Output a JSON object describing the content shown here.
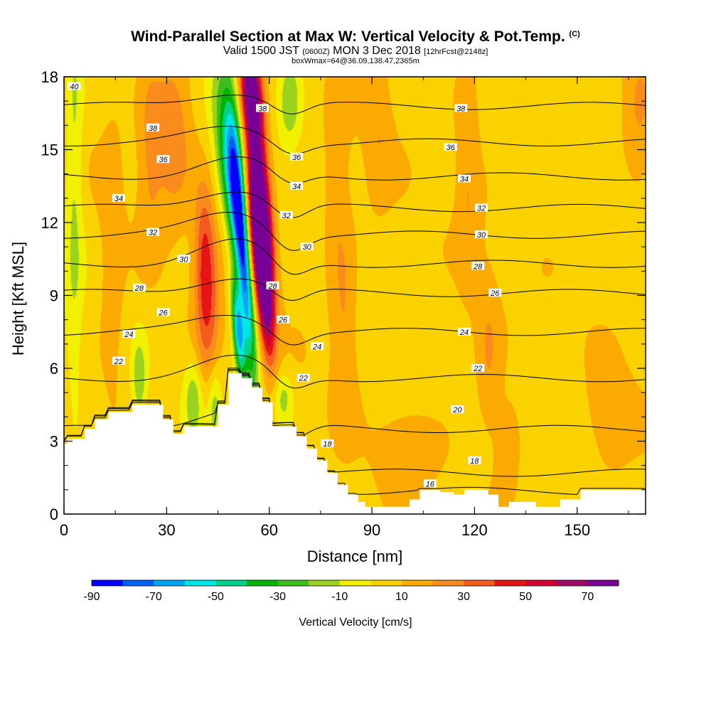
{
  "title": {
    "main": "Wind-Parallel Section at Max W: Vertical Velocity & Pot.Temp.",
    "copyright": "(C)",
    "valid_prefix": "Valid 1500 JST",
    "valid_utc": "(0600Z)",
    "valid_date": "MON 3 Dec 2018",
    "forecast": "[12hrFcst@2148z]",
    "box_info": "boxWmax=64@36.09,138.47,2365m"
  },
  "chart_data": {
    "type": "heatmap",
    "xlabel": "Distance [nm]",
    "ylabel": "Height [Kft MSL]",
    "xlim": [
      0,
      170
    ],
    "ylim": [
      0,
      18
    ],
    "x_ticks": [
      0,
      30,
      60,
      90,
      120,
      150
    ],
    "y_ticks": [
      0,
      3,
      6,
      9,
      12,
      15,
      18
    ],
    "colorbar": {
      "title": "Vertical Velocity [cm/s]",
      "levels": [
        -90,
        -80,
        -70,
        -60,
        -50,
        -40,
        -30,
        -20,
        -10,
        0,
        10,
        20,
        30,
        40,
        50,
        60,
        70,
        80
      ],
      "tick_labels": [
        -90,
        -70,
        -50,
        -30,
        -10,
        10,
        30,
        50,
        70
      ],
      "colors": [
        "#0000ff",
        "#005ff5",
        "#00a5f5",
        "#00e6e6",
        "#00d28c",
        "#00b400",
        "#3cbe1e",
        "#9ad21e",
        "#f0f000",
        "#fad200",
        "#faaa00",
        "#fa8c1e",
        "#f55a1e",
        "#e61414",
        "#d20032",
        "#a00a64",
        "#780096"
      ]
    },
    "terrain_profile": [
      [
        0,
        2.9
      ],
      [
        1,
        2.9
      ],
      [
        1,
        3.1
      ],
      [
        6,
        3.1
      ],
      [
        6,
        3.5
      ],
      [
        9,
        3.5
      ],
      [
        9,
        3.9
      ],
      [
        13,
        3.9
      ],
      [
        13,
        4.2
      ],
      [
        20,
        4.2
      ],
      [
        20,
        4.5
      ],
      [
        29,
        4.5
      ],
      [
        29,
        3.9
      ],
      [
        32,
        3.9
      ],
      [
        32,
        3.3
      ],
      [
        35,
        3.3
      ],
      [
        35,
        3.6
      ],
      [
        45,
        3.6
      ],
      [
        45,
        4.5
      ],
      [
        48,
        4.5
      ],
      [
        48,
        5.8
      ],
      [
        52,
        5.8
      ],
      [
        52,
        5.6
      ],
      [
        55,
        5.6
      ],
      [
        55,
        5.2
      ],
      [
        58,
        5.2
      ],
      [
        58,
        4.6
      ],
      [
        61,
        4.6
      ],
      [
        61,
        3.6
      ],
      [
        68,
        3.6
      ],
      [
        68,
        3.2
      ],
      [
        71,
        3.2
      ],
      [
        71,
        2.7
      ],
      [
        74,
        2.7
      ],
      [
        74,
        2.2
      ],
      [
        77,
        2.2
      ],
      [
        77,
        1.7
      ],
      [
        80,
        1.7
      ],
      [
        80,
        1.2
      ],
      [
        83,
        1.2
      ],
      [
        83,
        0.8
      ],
      [
        86,
        0.8
      ],
      [
        86,
        0.5
      ],
      [
        88,
        0.5
      ],
      [
        88,
        0.3
      ],
      [
        101,
        0.3
      ],
      [
        101,
        0.6
      ],
      [
        104,
        0.6
      ],
      [
        104,
        1.0
      ],
      [
        110,
        1.0
      ],
      [
        110,
        0.9
      ],
      [
        114,
        0.9
      ],
      [
        114,
        0.8
      ],
      [
        117,
        0.8
      ],
      [
        117,
        1.0
      ],
      [
        124,
        1.0
      ],
      [
        124,
        0.8
      ],
      [
        127,
        0.8
      ],
      [
        127,
        0.3
      ],
      [
        130,
        0.3
      ],
      [
        130,
        0.5
      ],
      [
        138,
        0.5
      ],
      [
        138,
        0.3
      ],
      [
        145,
        0.3
      ],
      [
        145,
        0.6
      ],
      [
        151,
        0.6
      ],
      [
        151,
        1.0
      ],
      [
        170,
        1.0
      ]
    ],
    "velocity_features": [
      {
        "x": 57.5,
        "y": 11.5,
        "w": 88,
        "sx": 2.2,
        "sy": 2.2
      },
      {
        "x": 56,
        "y": 15,
        "w": 55,
        "sx": 2.2,
        "sy": 3.0
      },
      {
        "x": 55,
        "y": 17.3,
        "w": 50,
        "sx": 2.0,
        "sy": 1.2
      },
      {
        "x": 59,
        "y": 8.5,
        "w": 45,
        "sx": 1.6,
        "sy": 1.8
      },
      {
        "x": 52.5,
        "y": 10.5,
        "w": -80,
        "sx": 1.5,
        "sy": 3.5
      },
      {
        "x": 51,
        "y": 7.5,
        "w": -65,
        "sx": 1.2,
        "sy": 1.5
      },
      {
        "x": 48,
        "y": 15.5,
        "w": -38,
        "sx": 3.0,
        "sy": 2.5
      },
      {
        "x": 49.5,
        "y": 13.0,
        "w": -35,
        "sx": 1.8,
        "sy": 2.0
      },
      {
        "x": 66,
        "y": 17.0,
        "w": -22,
        "sx": 2.5,
        "sy": 1.5
      },
      {
        "x": 42,
        "y": 8.5,
        "w": 28,
        "sx": 2.5,
        "sy": 2.5
      },
      {
        "x": 41,
        "y": 11.0,
        "w": 22,
        "sx": 2.0,
        "sy": 2.0
      },
      {
        "x": 38,
        "y": 4.8,
        "w": -22,
        "sx": 2.0,
        "sy": 1.2
      },
      {
        "x": 44,
        "y": 4.5,
        "w": -22,
        "sx": 1.5,
        "sy": 1.2
      },
      {
        "x": 22,
        "y": 5.5,
        "w": -22,
        "sx": 1.5,
        "sy": 1.2
      },
      {
        "x": 3,
        "y": 14.0,
        "w": -18,
        "sx": 1.8,
        "sy": 7.0
      },
      {
        "x": 32,
        "y": 16.0,
        "w": 22,
        "sx": 4.0,
        "sy": 2.5
      },
      {
        "x": 25,
        "y": 15.0,
        "w": 14,
        "sx": 2.5,
        "sy": 3.0
      },
      {
        "x": 14,
        "y": 10.0,
        "w": 12,
        "sx": 2.5,
        "sy": 4.0
      },
      {
        "x": 64,
        "y": 4.8,
        "w": -20,
        "sx": 2.0,
        "sy": 0.8
      },
      {
        "x": 82,
        "y": 7.0,
        "w": 14,
        "sx": 2.5,
        "sy": 2.5
      },
      {
        "x": 80,
        "y": 12.5,
        "w": 12,
        "sx": 3.0,
        "sy": 3.0
      },
      {
        "x": 92,
        "y": 16.0,
        "w": 12,
        "sx": 3.0,
        "sy": 2.5
      },
      {
        "x": 118,
        "y": 14.5,
        "w": 14,
        "sx": 2.5,
        "sy": 4.0
      },
      {
        "x": 124,
        "y": 6.5,
        "w": 14,
        "sx": 2.5,
        "sy": 2.5
      },
      {
        "x": 130,
        "y": 3.0,
        "w": 12,
        "sx": 3.0,
        "sy": 1.5
      },
      {
        "x": 160,
        "y": 3.8,
        "w": 12,
        "sx": 5.0,
        "sy": 1.5
      },
      {
        "x": 168,
        "y": 16.5,
        "w": 12,
        "sx": 3.0,
        "sy": 2.5
      },
      {
        "x": 100,
        "y": 2.5,
        "w": 12,
        "sx": 6.0,
        "sy": 1.2
      }
    ],
    "theta_contours": [
      {
        "value": 16,
        "y_far": 0.95,
        "bump": 0.8,
        "labels": [
          [
            107,
            1.25
          ]
        ]
      },
      {
        "value": 18,
        "y_far": 1.7,
        "bump": 1.5,
        "labels": [
          [
            77,
            2.9
          ],
          [
            120,
            2.2
          ]
        ]
      },
      {
        "value": 20,
        "y_far": 3.5,
        "bump": 0.9,
        "labels": [
          [
            115,
            4.3
          ]
        ]
      },
      {
        "value": 22,
        "y_far": 5.6,
        "bump": 0.8,
        "labels": [
          [
            16,
            6.3
          ],
          [
            70,
            5.6
          ],
          [
            121,
            6.0
          ]
        ]
      },
      {
        "value": 24,
        "y_far": 7.5,
        "bump": 0.7,
        "labels": [
          [
            19,
            7.4
          ],
          [
            74,
            6.9
          ],
          [
            117,
            7.5
          ]
        ]
      },
      {
        "value": 26,
        "y_far": 9.1,
        "bump": 0.7,
        "labels": [
          [
            29,
            8.3
          ],
          [
            64,
            8.0
          ],
          [
            126,
            9.1
          ]
        ]
      },
      {
        "value": 28,
        "y_far": 10.3,
        "bump": 0.9,
        "labels": [
          [
            22,
            9.3
          ],
          [
            61,
            9.4
          ],
          [
            121,
            10.2
          ]
        ]
      },
      {
        "value": 30,
        "y_far": 11.5,
        "bump": 0.9,
        "labels": [
          [
            35,
            10.5
          ],
          [
            71,
            11.0
          ],
          [
            122,
            11.5
          ]
        ]
      },
      {
        "value": 32,
        "y_far": 12.6,
        "bump": 0.8,
        "labels": [
          [
            26,
            11.6
          ],
          [
            65,
            12.3
          ],
          [
            122,
            12.6
          ]
        ]
      },
      {
        "value": 34,
        "y_far": 13.9,
        "bump": 0.7,
        "labels": [
          [
            16,
            13.0
          ],
          [
            68,
            13.5
          ],
          [
            117,
            13.8
          ]
        ]
      },
      {
        "value": 36,
        "y_far": 15.3,
        "bump": 0.6,
        "labels": [
          [
            29,
            14.6
          ],
          [
            68,
            14.7
          ],
          [
            113,
            15.1
          ]
        ]
      },
      {
        "value": 38,
        "y_far": 16.8,
        "bump": 0.6,
        "labels": [
          [
            26,
            15.9
          ],
          [
            58,
            16.7
          ],
          [
            116,
            16.7
          ]
        ]
      },
      {
        "value": 40,
        "y_far": 18.4,
        "bump": 0.4,
        "labels": [
          [
            3,
            17.6
          ]
        ]
      }
    ]
  }
}
